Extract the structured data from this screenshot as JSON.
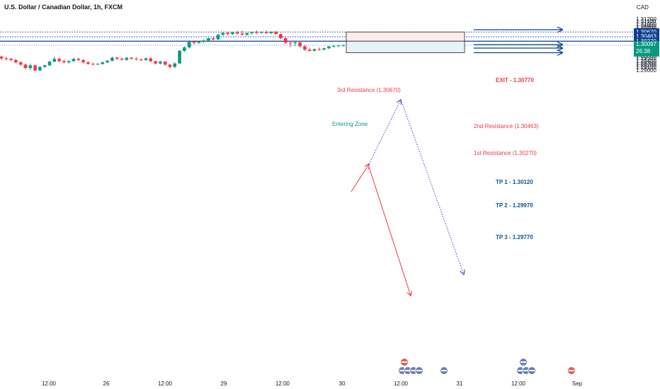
{
  "header": {
    "symbol_title": "U.S. Dollar / Canadian Dollar, 1h, FXCM",
    "currency": "CAD"
  },
  "price_axis": {
    "ticks": [
      "1.31200",
      "1.31100",
      "1.31000",
      "1.30900",
      "1.30800",
      "1.30700",
      "1.30600",
      "1.30500",
      "1.30400",
      "1.30300",
      "1.30200",
      "1.30000",
      "1.29900",
      "1.29800",
      "1.29700",
      "1.29600",
      "1.29500",
      "1.29400",
      "1.29300",
      "1.29200",
      "1.29100",
      "1.29000"
    ],
    "badges": [
      {
        "label": "1.30670",
        "color": "#0b3d91"
      },
      {
        "label": "1.30463",
        "color": "#0b3d91"
      },
      {
        "label": "1.30270",
        "color": "#0b3d91"
      }
    ],
    "current_price": {
      "label": "1.30097",
      "countdown": "26:38",
      "color": "#089981"
    }
  },
  "time_axis": {
    "ticks": [
      "12:00",
      "26",
      "12:00",
      "29",
      "12:00",
      "30",
      "12:00",
      "31",
      "12:00",
      "Sep"
    ]
  },
  "annotations": {
    "resistance_3": "3rd Resistance (1.30670)",
    "resistance_2": "2nd Resistance (1.30463)",
    "resistance_1": "1st Resistance (1.30270)",
    "entering_zone": "Entering Zone",
    "exit": "EXIT - 1.30770",
    "tp1": "TP 1 - 1.30120",
    "tp2": "TP 2 - 1.29970",
    "tp3": "TP 3 - 1.29770"
  },
  "colors": {
    "up": "#089981",
    "down": "#f23645",
    "level_line": "#0b3d91",
    "resistance_text": "#f23645",
    "zone_text": "#089981",
    "tp_text": "#0b5394",
    "zone_red": "#fdecec",
    "zone_blue": "#e6f4fa"
  },
  "chart_data": {
    "type": "candlestick",
    "symbol": "USDCAD",
    "interval": "1h",
    "ylim": [
      1.2893,
      1.3128
    ],
    "time_labels": [
      "12:00",
      "26",
      "12:00",
      "29",
      "12:00",
      "30",
      "12:00",
      "31",
      "12:00",
      "Sep"
    ],
    "candles": [
      [
        1.296,
        1.2965,
        1.2945,
        1.2952
      ],
      [
        1.2952,
        1.296,
        1.2942,
        1.295
      ],
      [
        1.295,
        1.2955,
        1.294,
        1.2945
      ],
      [
        1.2945,
        1.295,
        1.293,
        1.2935
      ],
      [
        1.2935,
        1.294,
        1.292,
        1.2925
      ],
      [
        1.2925,
        1.293,
        1.2905,
        1.291
      ],
      [
        1.291,
        1.293,
        1.29,
        1.2922
      ],
      [
        1.2922,
        1.2925,
        1.2895,
        1.29
      ],
      [
        1.29,
        1.2918,
        1.2897,
        1.2915
      ],
      [
        1.2915,
        1.2925,
        1.291,
        1.2922
      ],
      [
        1.2922,
        1.2942,
        1.2918,
        1.2938
      ],
      [
        1.2938,
        1.296,
        1.2935,
        1.295
      ],
      [
        1.295,
        1.2958,
        1.2935,
        1.294
      ],
      [
        1.294,
        1.2948,
        1.293,
        1.2935
      ],
      [
        1.2935,
        1.2945,
        1.2928,
        1.294
      ],
      [
        1.294,
        1.2955,
        1.2938,
        1.295
      ],
      [
        1.295,
        1.2956,
        1.294,
        1.2945
      ],
      [
        1.2945,
        1.2948,
        1.293,
        1.2935
      ],
      [
        1.2935,
        1.294,
        1.2925,
        1.2928
      ],
      [
        1.2928,
        1.2935,
        1.2922,
        1.2926
      ],
      [
        1.2926,
        1.2932,
        1.2924,
        1.2928
      ],
      [
        1.2928,
        1.2938,
        1.2925,
        1.2935
      ],
      [
        1.2935,
        1.2945,
        1.2932,
        1.2942
      ],
      [
        1.2942,
        1.296,
        1.2938,
        1.2955
      ],
      [
        1.2955,
        1.296,
        1.2945,
        1.295
      ],
      [
        1.295,
        1.2956,
        1.2944,
        1.2946
      ],
      [
        1.2946,
        1.2958,
        1.2942,
        1.2955
      ],
      [
        1.2955,
        1.2958,
        1.2948,
        1.295
      ],
      [
        1.295,
        1.2958,
        1.2944,
        1.2947
      ],
      [
        1.2947,
        1.2952,
        1.294,
        1.2945
      ],
      [
        1.2945,
        1.2956,
        1.2942,
        1.2952
      ],
      [
        1.2952,
        1.2958,
        1.2935,
        1.294
      ],
      [
        1.294,
        1.2942,
        1.2925,
        1.293
      ],
      [
        1.293,
        1.2942,
        1.2926,
        1.2938
      ],
      [
        1.2938,
        1.294,
        1.292,
        1.2925
      ],
      [
        1.2925,
        1.2928,
        1.2908,
        1.2915
      ],
      [
        1.2915,
        1.2935,
        1.291,
        1.293
      ],
      [
        1.293,
        1.299,
        1.2928,
        1.2985
      ],
      [
        1.2985,
        1.3005,
        1.298,
        1.3
      ],
      [
        1.3,
        1.303,
        1.2995,
        1.3025
      ],
      [
        1.3025,
        1.303,
        1.3012,
        1.302
      ],
      [
        1.302,
        1.3028,
        1.3015,
        1.3025
      ],
      [
        1.3025,
        1.3035,
        1.3018,
        1.303
      ],
      [
        1.303,
        1.3042,
        1.3025,
        1.304
      ],
      [
        1.304,
        1.3048,
        1.303,
        1.3035
      ],
      [
        1.3035,
        1.306,
        1.3032,
        1.3055
      ],
      [
        1.3055,
        1.3066,
        1.305,
        1.3063
      ],
      [
        1.3063,
        1.3068,
        1.3052,
        1.3058
      ],
      [
        1.3058,
        1.3068,
        1.3054,
        1.3065
      ],
      [
        1.3065,
        1.3072,
        1.3056,
        1.306
      ],
      [
        1.306,
        1.3072,
        1.3052,
        1.3055
      ],
      [
        1.3055,
        1.3065,
        1.305,
        1.3062
      ],
      [
        1.3062,
        1.3068,
        1.3056,
        1.3066
      ],
      [
        1.3066,
        1.3074,
        1.3058,
        1.3064
      ],
      [
        1.3064,
        1.307,
        1.306,
        1.3066
      ],
      [
        1.3066,
        1.3075,
        1.3058,
        1.3062
      ],
      [
        1.3062,
        1.307,
        1.3058,
        1.3068
      ],
      [
        1.3068,
        1.3072,
        1.3055,
        1.3058
      ],
      [
        1.3058,
        1.306,
        1.3035,
        1.304
      ],
      [
        1.304,
        1.3045,
        1.3015,
        1.302
      ],
      [
        1.302,
        1.3026,
        1.3,
        1.3018
      ],
      [
        1.3018,
        1.3025,
        1.3005,
        1.3022
      ],
      [
        1.3022,
        1.3028,
        1.3,
        1.3005
      ],
      [
        1.3005,
        1.301,
        1.2985,
        1.299
      ],
      [
        1.299,
        1.2998,
        1.2982,
        1.2985
      ],
      [
        1.2985,
        1.2995,
        1.2983,
        1.2992
      ],
      [
        1.2992,
        1.3,
        1.2986,
        1.299
      ],
      [
        1.299,
        1.2998,
        1.2988,
        1.2996
      ],
      [
        1.2996,
        1.3007,
        1.2993,
        1.3004
      ],
      [
        1.3004,
        1.3012,
        1.3,
        1.3006
      ],
      [
        1.3006,
        1.301,
        1.3002,
        1.3008
      ],
      [
        1.3008,
        1.3012,
        1.3004,
        1.3009
      ]
    ],
    "levels": [
      {
        "label": "3rd Resistance (1.30670)",
        "price": 1.3067
      },
      {
        "label": "2nd Resistance (1.30463)",
        "price": 1.30463
      },
      {
        "label": "1st Resistance (1.30270)",
        "price": 1.3027
      }
    ],
    "targets": [
      {
        "label": "EXIT - 1.30770",
        "price": 1.3077
      },
      {
        "label": "TP 1 - 1.30120",
        "price": 1.3012
      },
      {
        "label": "TP 2 - 1.29970",
        "price": 1.2997
      },
      {
        "label": "TP 3 - 1.29770",
        "price": 1.2977
      }
    ],
    "entering_zone": {
      "top": 1.3067,
      "middle": 1.3027,
      "bottom": 1.2977
    },
    "current_price": 1.30097
  }
}
